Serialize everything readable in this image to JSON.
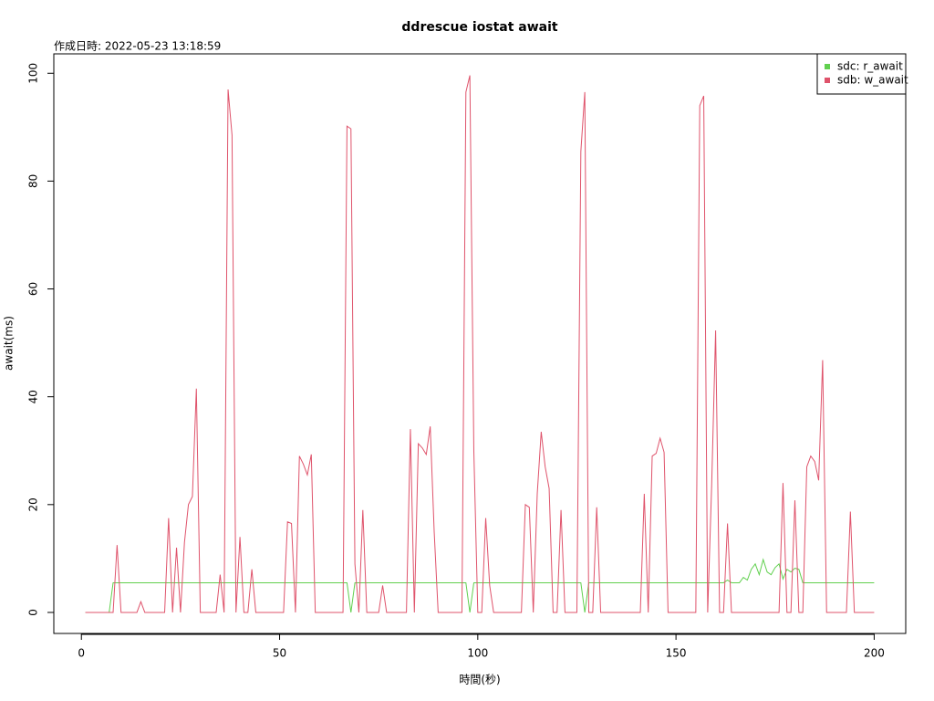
{
  "chart_data": {
    "type": "line",
    "title": "ddrescue iostat await",
    "subtitle": "作成日時: 2022-05-23 13:18:59",
    "x_label": "時間(秒)",
    "y_label": "await(ms)",
    "xlim": [
      -6.96,
      207.96
    ],
    "ylim": [
      -3.9,
      103.6
    ],
    "xticks": [
      0,
      50,
      100,
      150,
      200
    ],
    "yticks": [
      0,
      20,
      40,
      60,
      80,
      100
    ],
    "legend": "top-right",
    "x": [
      1,
      2,
      3,
      4,
      5,
      6,
      7,
      8,
      9,
      10,
      11,
      12,
      13,
      14,
      15,
      16,
      17,
      18,
      19,
      20,
      21,
      22,
      23,
      24,
      25,
      26,
      27,
      28,
      29,
      30,
      31,
      32,
      33,
      34,
      35,
      36,
      37,
      38,
      39,
      40,
      41,
      42,
      43,
      44,
      45,
      46,
      47,
      48,
      49,
      50,
      51,
      52,
      53,
      54,
      55,
      56,
      57,
      58,
      59,
      60,
      61,
      62,
      63,
      64,
      65,
      66,
      67,
      68,
      69,
      70,
      71,
      72,
      73,
      74,
      75,
      76,
      77,
      78,
      79,
      80,
      81,
      82,
      83,
      84,
      85,
      86,
      87,
      88,
      89,
      90,
      91,
      92,
      93,
      94,
      95,
      96,
      97,
      98,
      99,
      100,
      101,
      102,
      103,
      104,
      105,
      106,
      107,
      108,
      109,
      110,
      111,
      112,
      113,
      114,
      115,
      116,
      117,
      118,
      119,
      120,
      121,
      122,
      123,
      124,
      125,
      126,
      127,
      128,
      129,
      130,
      131,
      132,
      133,
      134,
      135,
      136,
      137,
      138,
      139,
      140,
      141,
      142,
      143,
      144,
      145,
      146,
      147,
      148,
      149,
      150,
      151,
      152,
      153,
      154,
      155,
      156,
      157,
      158,
      159,
      160,
      161,
      162,
      163,
      164,
      165,
      166,
      167,
      168,
      169,
      170,
      171,
      172,
      173,
      174,
      175,
      176,
      177,
      178,
      179,
      180,
      181,
      182,
      183,
      184,
      185,
      186,
      187,
      188,
      189,
      190,
      191,
      192,
      193,
      194,
      195,
      196,
      197,
      198,
      199,
      200
    ],
    "series": [
      {
        "name": "sdc: r_await",
        "color": "#61D04F",
        "values": [
          0,
          0,
          0,
          0,
          0,
          0,
          0,
          5.5,
          5.5,
          5.5,
          5.5,
          5.5,
          5.5,
          5.5,
          5.5,
          5.5,
          5.5,
          5.5,
          5.5,
          5.5,
          5.5,
          5.5,
          5.5,
          5.5,
          5.5,
          5.5,
          5.5,
          5.5,
          5.5,
          5.5,
          5.5,
          5.5,
          5.5,
          5.5,
          5.5,
          5.5,
          5.5,
          5.5,
          5.5,
          5.5,
          5.5,
          5.5,
          5.5,
          5.5,
          5.5,
          5.5,
          5.5,
          5.5,
          5.5,
          5.5,
          5.5,
          5.5,
          5.5,
          5.5,
          5.5,
          5.5,
          5.5,
          5.5,
          5.5,
          5.5,
          5.5,
          5.5,
          5.5,
          5.5,
          5.5,
          5.5,
          5.5,
          0,
          5.5,
          5.5,
          5.5,
          5.5,
          5.5,
          5.5,
          5.5,
          5.5,
          5.5,
          5.5,
          5.5,
          5.5,
          5.5,
          5.5,
          5.5,
          5.5,
          5.5,
          5.5,
          5.5,
          5.5,
          5.5,
          5.5,
          5.5,
          5.5,
          5.5,
          5.5,
          5.5,
          5.5,
          5.5,
          0,
          5.5,
          5.5,
          5.5,
          5.5,
          5.5,
          5.5,
          5.5,
          5.5,
          5.5,
          5.5,
          5.5,
          5.5,
          5.5,
          5.5,
          5.5,
          5.5,
          5.5,
          5.5,
          5.5,
          5.5,
          5.5,
          5.5,
          5.5,
          5.5,
          5.5,
          5.5,
          5.5,
          5.5,
          0,
          5.5,
          5.5,
          5.5,
          5.5,
          5.5,
          5.5,
          5.5,
          5.5,
          5.5,
          5.5,
          5.5,
          5.5,
          5.5,
          5.5,
          5.5,
          5.5,
          5.5,
          5.5,
          5.5,
          5.5,
          5.5,
          5.5,
          5.5,
          5.5,
          5.5,
          5.5,
          5.5,
          5.5,
          5.5,
          5.5,
          5.5,
          5.5,
          5.5,
          5.5,
          5.5,
          6,
          5.5,
          5.5,
          5.5,
          6.5,
          6,
          8,
          9,
          7,
          9.8,
          7.5,
          7,
          8.3,
          9,
          6.2,
          8,
          7.5,
          8.2,
          8,
          5.5,
          5.5,
          5.5,
          5.5,
          5.5,
          5.5,
          5.5,
          5.5,
          5.5,
          5.5,
          5.5,
          5.5,
          5.5,
          5.5,
          5.5,
          5.5,
          5.5,
          5.5,
          5.5
        ]
      },
      {
        "name": "sdb: w_await",
        "color": "#DF536B",
        "values": [
          0,
          0,
          0,
          0,
          0,
          0,
          0,
          0,
          12.5,
          0,
          0,
          0,
          0,
          0,
          2,
          0,
          0,
          0,
          0,
          0,
          0,
          17.5,
          0,
          12,
          0,
          13,
          20,
          21.5,
          41.5,
          0,
          0,
          0,
          0,
          0,
          7,
          0,
          97,
          88.5,
          0,
          14,
          0,
          0,
          8,
          0,
          0,
          0,
          0,
          0,
          0,
          0,
          0,
          16.8,
          16.5,
          0,
          29,
          27.5,
          25.5,
          29.3,
          0,
          0,
          0,
          0,
          0,
          0,
          0,
          0,
          90.2,
          89.7,
          9,
          0,
          19,
          0,
          0,
          0,
          0,
          5,
          0,
          0,
          0,
          0,
          0,
          0,
          34,
          0,
          31.3,
          30.5,
          29.3,
          34.5,
          15,
          0,
          0,
          0,
          0,
          0,
          0,
          0,
          96.5,
          99.6,
          30,
          0,
          0,
          17.5,
          5,
          0,
          0,
          0,
          0,
          0,
          0,
          0,
          0,
          20,
          19.5,
          0,
          22,
          33.5,
          27,
          23,
          0,
          0,
          19,
          0,
          0,
          0,
          0,
          85.5,
          96.5,
          0,
          0,
          19.5,
          0,
          0,
          0,
          0,
          0,
          0,
          0,
          0,
          0,
          0,
          0,
          22,
          0,
          29,
          29.5,
          32.3,
          29.7,
          0,
          0,
          0,
          0,
          0,
          0,
          0,
          0,
          94,
          95.8,
          0,
          23.5,
          52.3,
          0,
          0,
          16.5,
          0,
          0,
          0,
          0,
          0,
          0,
          0,
          0,
          0,
          0,
          0,
          0,
          0,
          24,
          0,
          0,
          20.8,
          0,
          0,
          27,
          29,
          28,
          24.5,
          46.8,
          0,
          0,
          0,
          0,
          0,
          0,
          18.7,
          0,
          0,
          0,
          0,
          0,
          0
        ]
      }
    ]
  }
}
